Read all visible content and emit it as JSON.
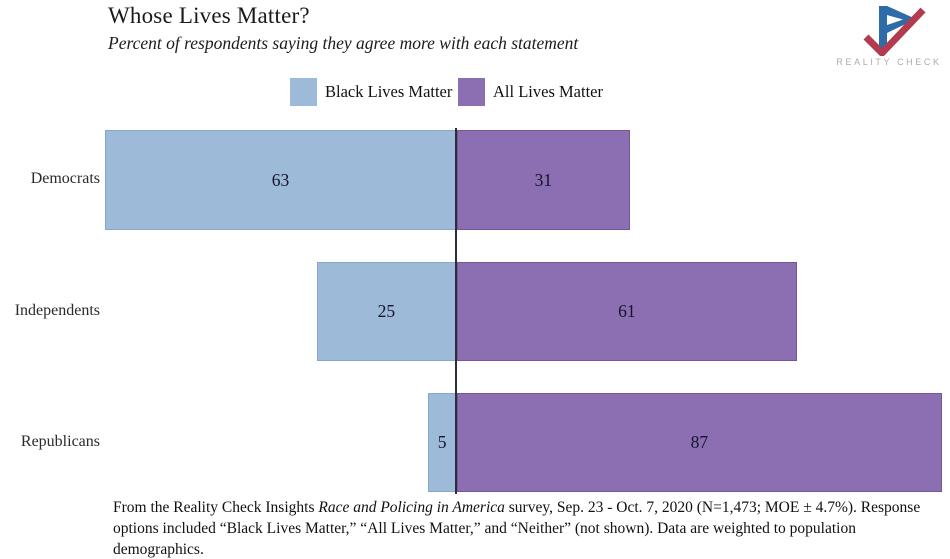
{
  "header": {
    "title": "Whose Lives Matter?",
    "subtitle": "Percent of respondents saying they agree more with each statement"
  },
  "logo": {
    "brand": "REALITY CHECK",
    "mark_blue": "#2d6ca6",
    "mark_red": "#b23b50",
    "text_color": "#b3a9a1"
  },
  "legend": {
    "items": [
      {
        "label": "Black Lives Matter",
        "color": "#9dbad9"
      },
      {
        "label": "All Lives Matter",
        "color": "#8c6fb2"
      }
    ]
  },
  "chart_data": {
    "type": "bar",
    "orientation": "horizontal-diverging",
    "categories": [
      "Democrats",
      "Independents",
      "Republicans"
    ],
    "series": [
      {
        "name": "Black Lives Matter",
        "side": "left",
        "color": "#9dbad9",
        "border_color": "#86a7c9",
        "values": [
          63,
          25,
          5
        ]
      },
      {
        "name": "All Lives Matter",
        "side": "right",
        "color": "#8c6fb2",
        "border_color": "#755698",
        "values": [
          31,
          61,
          87
        ]
      }
    ],
    "value_labels_shown": true,
    "axis_max_each_side": 88,
    "baseline_color": "#2d2d3a",
    "grid": false,
    "legend_position": "top-center"
  },
  "footer": {
    "prefix": "From the Reality Check Insights ",
    "italic": "Race and Policing in America",
    "suffix": " survey, Sep. 23 - Oct. 7, 2020 (N=1,473; MOE ± 4.7%). Response options included “Black Lives Matter,” “All Lives Matter,” and “Neither” (not shown). Data are weighted to population demographics."
  }
}
